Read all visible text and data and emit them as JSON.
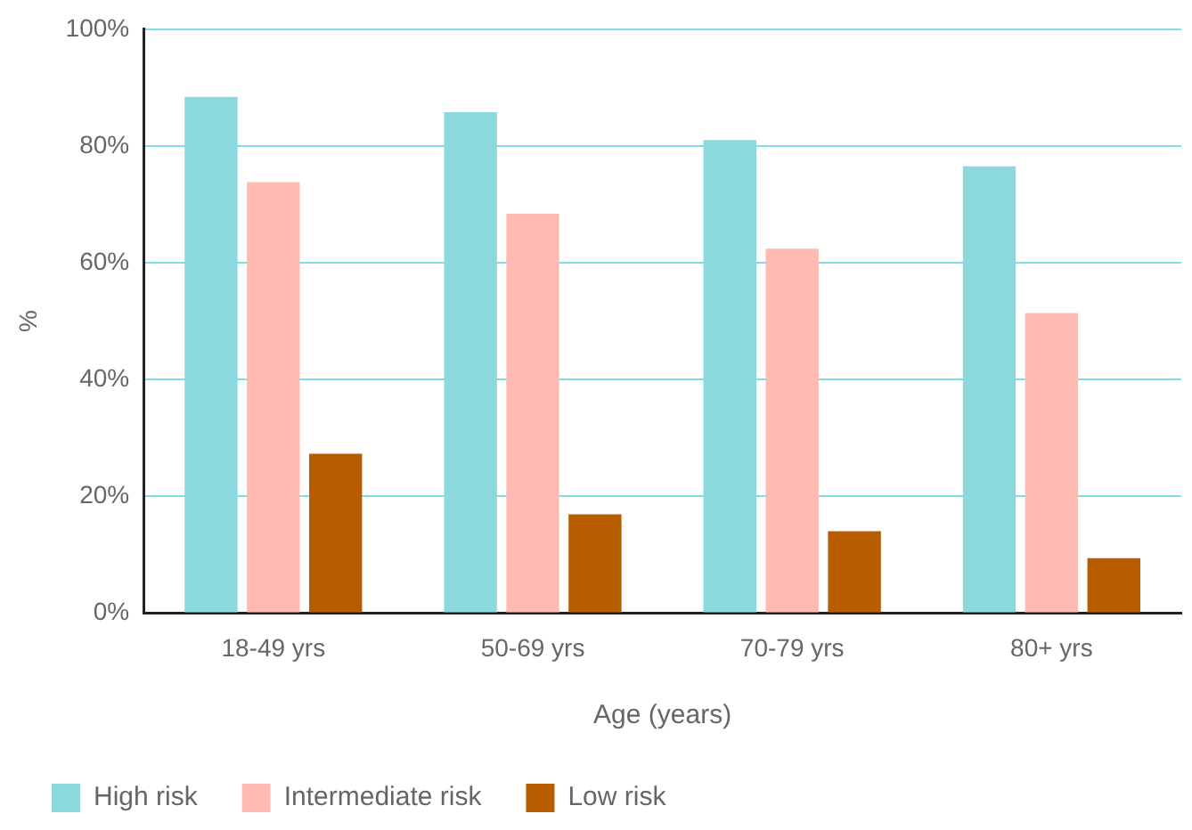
{
  "chart_data": {
    "type": "bar",
    "xlabel": "Age (years)",
    "ylabel": "%",
    "categories": [
      "18-49 yrs",
      "50-69 yrs",
      "70-79 yrs",
      "80+ yrs"
    ],
    "series": [
      {
        "name": "High risk",
        "color": "#8bd8dd",
        "values": [
          88.4,
          85.8,
          81.0,
          76.5
        ]
      },
      {
        "name": "Intermediate risk",
        "color": "#ffbbb1",
        "values": [
          73.8,
          68.4,
          62.4,
          51.4
        ]
      },
      {
        "name": "Low risk",
        "color": "#b85c00",
        "values": [
          27.3,
          16.9,
          14.0,
          9.4
        ]
      }
    ],
    "ylim": [
      0,
      100
    ],
    "yticks": [
      {
        "value": 0,
        "label": "0%"
      },
      {
        "value": 20,
        "label": "20%"
      },
      {
        "value": 40,
        "label": "40%"
      },
      {
        "value": 60,
        "label": "60%"
      },
      {
        "value": 80,
        "label": "80%"
      },
      {
        "value": 100,
        "label": "100%"
      }
    ],
    "grid": "y",
    "legend": "bottom"
  }
}
